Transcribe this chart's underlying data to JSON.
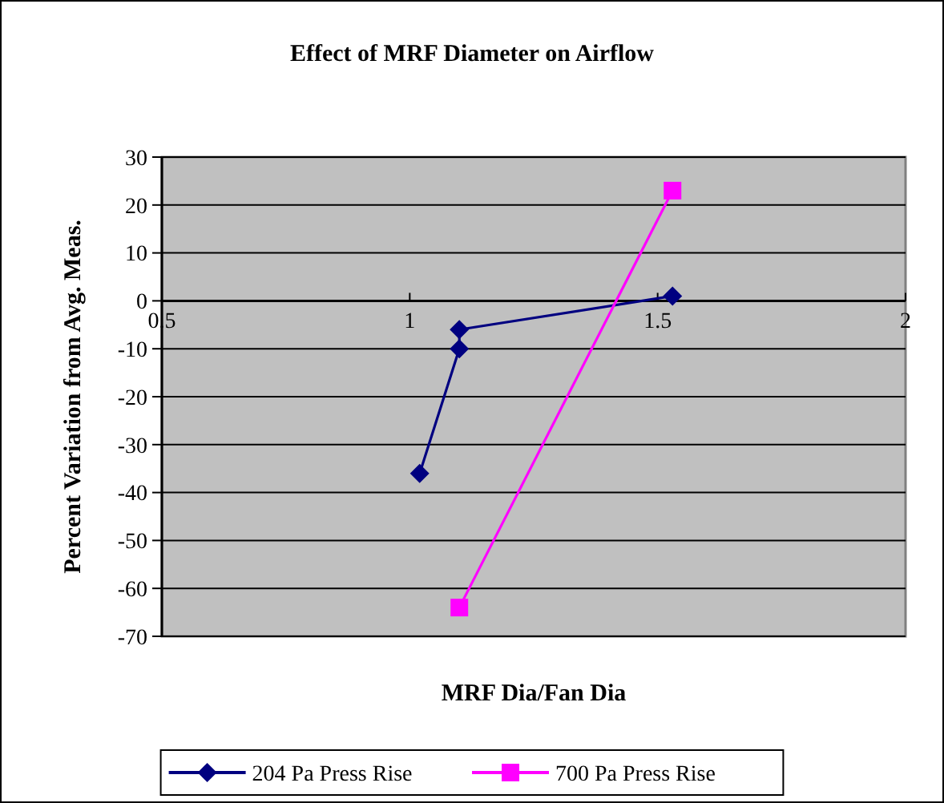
{
  "chart_data": {
    "type": "line",
    "title": "Effect of MRF Diameter on Airflow",
    "xlabel": "MRF Dia/Fan Dia",
    "ylabel": "Percent Variation from Avg. Meas.",
    "xlim": [
      0.5,
      2
    ],
    "xticks": [
      0.5,
      1,
      1.5,
      2
    ],
    "ylim": [
      -70,
      30
    ],
    "yticks": [
      -70,
      -60,
      -50,
      -40,
      -30,
      -20,
      -10,
      0,
      10,
      20,
      30
    ],
    "grid": "y",
    "legend": "bottom",
    "series": [
      {
        "name": "204 Pa Press Rise",
        "color": "#000080",
        "marker": "diamond",
        "x": [
          1.02,
          1.1,
          1.1,
          1.53
        ],
        "values": [
          -36,
          -10,
          -6,
          1
        ]
      },
      {
        "name": "700 Pa Press Rise",
        "color": "#ff00ff",
        "marker": "square",
        "x": [
          1.1,
          1.53
        ],
        "values": [
          -64,
          23
        ]
      }
    ]
  }
}
